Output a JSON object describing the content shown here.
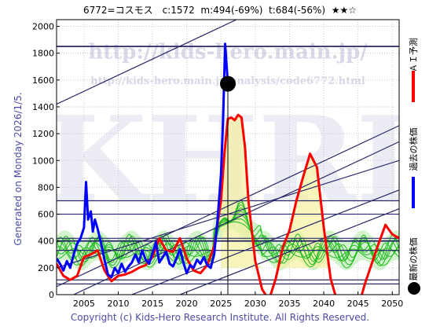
{
  "header": {
    "title": "6772=コスモス　c:1572  m:494(-69%)  t:684(-56%)  ★★☆"
  },
  "side_label": "Generated on Monday 2026/1/5.",
  "footer": {
    "copyright": "Copyright (c) Kids-Hero Research Institute. All Rights Reserved."
  },
  "watermark": {
    "url_large": "http://kids-hero.main.jp/",
    "url_small": "http://kids-hero.main.jp/analysis/code6772.html",
    "logo": "KHRI"
  },
  "legend": {
    "items": [
      {
        "label": "ＡＩ予測",
        "color": "#ff0000"
      },
      {
        "label": "過去の株価",
        "color": "#0000ff"
      },
      {
        "label": "最新の株価",
        "color": "#000000"
      }
    ]
  },
  "chart_data": {
    "type": "line",
    "xlim": [
      2001,
      2051
    ],
    "ylim": [
      0,
      2050
    ],
    "x_ticks": [
      2005,
      2010,
      2015,
      2020,
      2025,
      2030,
      2035,
      2040,
      2045,
      2050
    ],
    "y_ticks": [
      0,
      200,
      400,
      600,
      800,
      1000,
      1200,
      1400,
      1600,
      1800,
      2000
    ],
    "grid": true,
    "horizontal_lines": [
      80,
      110,
      330,
      400,
      420,
      600,
      700,
      1850
    ],
    "trend_lines": [
      {
        "x": [
          2001,
          2051
        ],
        "y": [
          1420,
          2620
        ]
      },
      {
        "x": [
          2001,
          2051
        ],
        "y": [
          60,
          1260
        ]
      },
      {
        "x": [
          2001,
          2051
        ],
        "y": [
          -60,
          1140
        ]
      },
      {
        "x": [
          2001,
          2051
        ],
        "y": [
          200,
          1000
        ]
      },
      {
        "x": [
          2001,
          2051
        ],
        "y": [
          -220,
          780
        ]
      },
      {
        "x": [
          2001,
          2051
        ],
        "y": [
          -360,
          640
        ]
      }
    ],
    "current_point": {
      "x": 2026.0,
      "y": 1572
    },
    "current_marker_x": 2026.0,
    "series": [
      {
        "name": "過去の株価",
        "color": "#0000ff",
        "x": [
          2001.0,
          2001.5,
          2002.0,
          2002.5,
          2003.0,
          2003.5,
          2004.0,
          2004.5,
          2005.0,
          2005.3,
          2005.6,
          2006.0,
          2006.3,
          2006.6,
          2007.0,
          2007.5,
          2008.0,
          2008.5,
          2009.0,
          2009.5,
          2010.0,
          2010.5,
          2011.0,
          2011.5,
          2012.0,
          2012.5,
          2013.0,
          2013.5,
          2014.0,
          2014.5,
          2015.0,
          2015.5,
          2016.0,
          2016.5,
          2017.0,
          2017.5,
          2018.0,
          2018.5,
          2019.0,
          2019.5,
          2020.0,
          2020.5,
          2021.0,
          2021.5,
          2022.0,
          2022.5,
          2023.0,
          2023.5,
          2024.0,
          2024.5,
          2025.0,
          2025.3,
          2025.6,
          2026.0
        ],
        "y": [
          270,
          230,
          180,
          250,
          200,
          300,
          380,
          420,
          500,
          840,
          560,
          620,
          470,
          560,
          490,
          380,
          260,
          150,
          130,
          200,
          160,
          230,
          170,
          210,
          240,
          300,
          240,
          330,
          260,
          230,
          310,
          390,
          240,
          280,
          320,
          230,
          210,
          270,
          340,
          240,
          160,
          220,
          200,
          260,
          230,
          280,
          220,
          200,
          300,
          560,
          900,
          1300,
          1870,
          1572
        ]
      },
      {
        "name": "ＡＩ予測",
        "color": "#ff0000",
        "x": [
          2001.0,
          2002.0,
          2003.0,
          2004.0,
          2005.0,
          2006.0,
          2007.0,
          2008.0,
          2009.0,
          2010.0,
          2011.0,
          2012.0,
          2013.0,
          2014.0,
          2015.0,
          2016.0,
          2017.0,
          2018.0,
          2019.0,
          2020.0,
          2021.0,
          2022.0,
          2023.0,
          2024.0,
          2025.0,
          2025.5,
          2026.0,
          2026.5,
          2027.0,
          2027.5,
          2028.0,
          2028.5,
          2029.0,
          2030.0,
          2031.0,
          2032.0,
          2033.0,
          2034.0,
          2035.0,
          2036.0,
          2037.0,
          2038.0,
          2038.5,
          2039.0,
          2040.0,
          2041.0,
          2042.0,
          2043.0,
          2044.0,
          2045.0,
          2046.0,
          2047.0,
          2048.0,
          2049.0,
          2050.0,
          2051.0
        ],
        "y": [
          230,
          140,
          110,
          140,
          280,
          300,
          330,
          180,
          100,
          140,
          150,
          170,
          200,
          220,
          280,
          420,
          330,
          320,
          420,
          270,
          180,
          160,
          220,
          360,
          700,
          1050,
          1310,
          1320,
          1300,
          1340,
          1320,
          1100,
          700,
          250,
          40,
          -40,
          120,
          350,
          480,
          700,
          880,
          1050,
          1000,
          950,
          500,
          120,
          -60,
          -120,
          -140,
          -100,
          80,
          230,
          380,
          520,
          450,
          420
        ]
      }
    ]
  }
}
